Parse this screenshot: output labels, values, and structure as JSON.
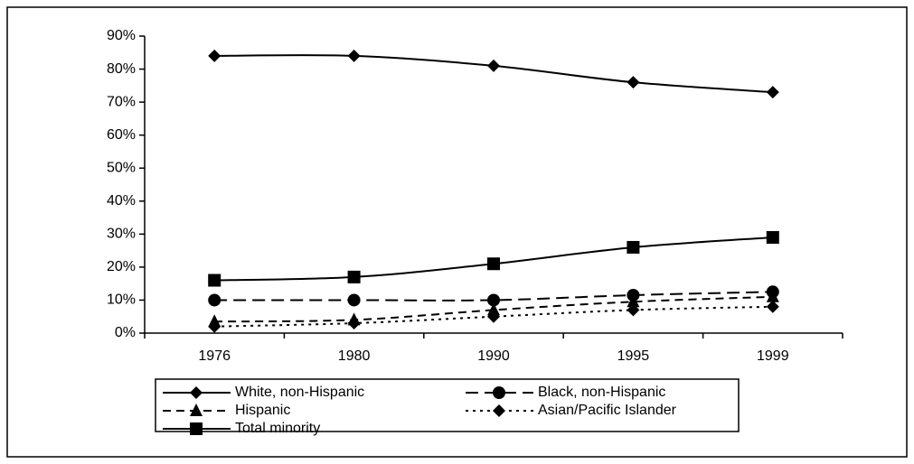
{
  "chart_data": {
    "type": "line",
    "categories": [
      "1976",
      "1980",
      "1990",
      "1995",
      "1999"
    ],
    "series": [
      {
        "name": "White, non-Hispanic",
        "color": "#000000",
        "marker": "diamond",
        "dash": "solid",
        "values": [
          84,
          84,
          81,
          76,
          73
        ]
      },
      {
        "name": "Black, non-Hispanic",
        "color": "#000000",
        "marker": "circle",
        "dash": "long-dash",
        "values": [
          10,
          10,
          10,
          11.5,
          12.5
        ]
      },
      {
        "name": "Hispanic",
        "color": "#000000",
        "marker": "triangle",
        "dash": "dash",
        "values": [
          3.5,
          4,
          7,
          9.5,
          11
        ]
      },
      {
        "name": "Asian/Pacific Islander",
        "color": "#000000",
        "marker": "diamond",
        "dash": "dot",
        "values": [
          2,
          3,
          5,
          7,
          8
        ]
      },
      {
        "name": "Total minority",
        "color": "#000000",
        "marker": "square",
        "dash": "solid",
        "values": [
          16,
          17,
          21,
          26,
          29
        ]
      }
    ],
    "ylim": [
      0,
      90
    ],
    "yticks": [
      {
        "value": 0,
        "label": "0%"
      },
      {
        "value": 10,
        "label": "10%"
      },
      {
        "value": 20,
        "label": "20%"
      },
      {
        "value": 30,
        "label": "30%"
      },
      {
        "value": 40,
        "label": "40%"
      },
      {
        "value": 50,
        "label": "50%"
      },
      {
        "value": 60,
        "label": "60%"
      },
      {
        "value": 70,
        "label": "70%"
      },
      {
        "value": 80,
        "label": "80%"
      },
      {
        "value": 90,
        "label": "90%"
      }
    ],
    "grid": false,
    "legend": "bottom"
  }
}
